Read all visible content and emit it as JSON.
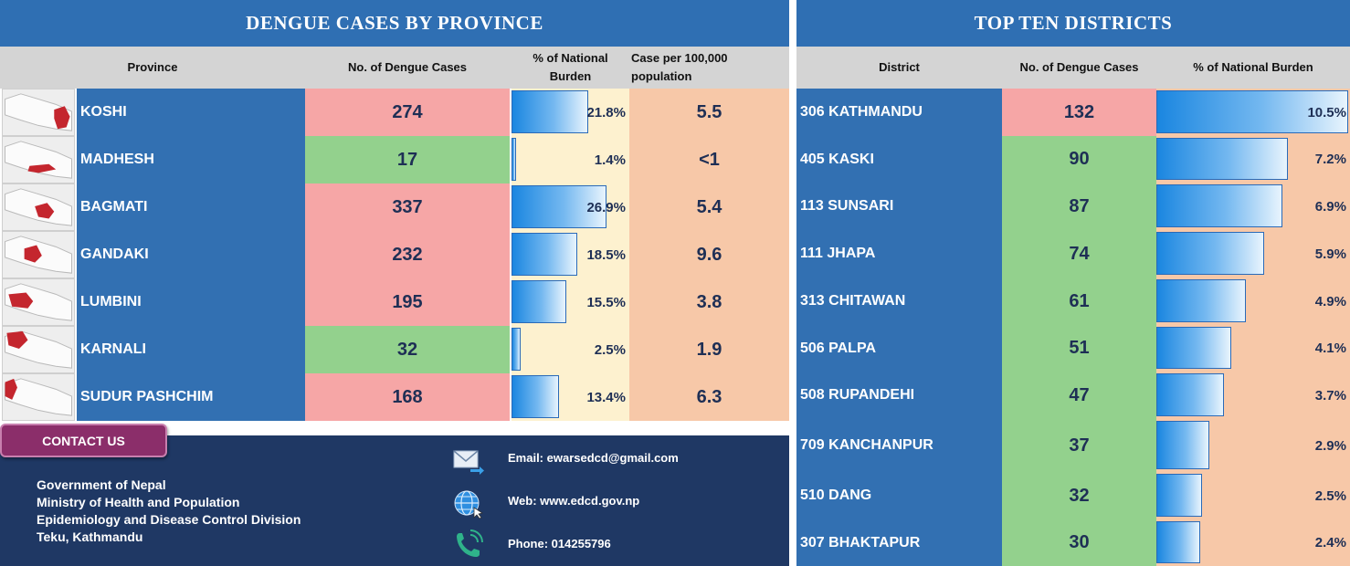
{
  "left_title": "DENGUE CASES BY PROVINCE",
  "right_title": "TOP TEN DISTRICTS",
  "province_headers": {
    "province": "Province",
    "cases": "No. of Dengue Cases",
    "burden": "% of National Burden",
    "rate": "Case per 100,000 population"
  },
  "provinces": [
    {
      "name": "KOSHI",
      "cases": "274",
      "burden": "21.8%",
      "burden_value": 21.8,
      "rate": "5.5",
      "case_color": "red"
    },
    {
      "name": "MADHESH",
      "cases": "17",
      "burden": "1.4%",
      "burden_value": 1.4,
      "rate": "<1",
      "case_color": "green"
    },
    {
      "name": "BAGMATI",
      "cases": "337",
      "burden": "26.9%",
      "burden_value": 26.9,
      "rate": "5.4",
      "case_color": "red"
    },
    {
      "name": "GANDAKI",
      "cases": "232",
      "burden": "18.5%",
      "burden_value": 18.5,
      "rate": "9.6",
      "case_color": "red"
    },
    {
      "name": "LUMBINI",
      "cases": "195",
      "burden": "15.5%",
      "burden_value": 15.5,
      "rate": "3.8",
      "case_color": "red"
    },
    {
      "name": "KARNALI",
      "cases": "32",
      "burden": "2.5%",
      "burden_value": 2.5,
      "rate": "1.9",
      "case_color": "green"
    },
    {
      "name": "SUDUR PASHCHIM",
      "cases": "168",
      "burden": "13.4%",
      "burden_value": 13.4,
      "rate": "6.3",
      "case_color": "red"
    }
  ],
  "district_headers": {
    "district": "District",
    "cases": "No. of Dengue Cases",
    "burden": "% of National Burden"
  },
  "districts": [
    {
      "name": "306 KATHMANDU",
      "cases": "132",
      "burden": "10.5%",
      "burden_value": 10.5,
      "case_color": "red"
    },
    {
      "name": "405 KASKI",
      "cases": "90",
      "burden": "7.2%",
      "burden_value": 7.2,
      "case_color": "green"
    },
    {
      "name": "113 SUNSARI",
      "cases": "87",
      "burden": "6.9%",
      "burden_value": 6.9,
      "case_color": "green"
    },
    {
      "name": "111 JHAPA",
      "cases": "74",
      "burden": "5.9%",
      "burden_value": 5.9,
      "case_color": "green"
    },
    {
      "name": "313 CHITAWAN",
      "cases": "61",
      "burden": "4.9%",
      "burden_value": 4.9,
      "case_color": "green"
    },
    {
      "name": "506 PALPA",
      "cases": "51",
      "burden": "4.1%",
      "burden_value": 4.1,
      "case_color": "green"
    },
    {
      "name": "508 RUPANDEHI",
      "cases": "47",
      "burden": "3.7%",
      "burden_value": 3.7,
      "case_color": "green"
    },
    {
      "name": "709 KANCHANPUR",
      "cases": "37",
      "burden": "2.9%",
      "burden_value": 2.9,
      "case_color": "green"
    },
    {
      "name": "510 DANG",
      "cases": "32",
      "burden": "2.5%",
      "burden_value": 2.5,
      "case_color": "green"
    },
    {
      "name": "307 BHAKTAPUR",
      "cases": "30",
      "burden": "2.4%",
      "burden_value": 2.4,
      "case_color": "green"
    }
  ],
  "contact": {
    "button": "CONTACT US",
    "org_lines": [
      "Government of Nepal",
      "Ministry of Health and Population",
      "Epidemiology and Disease Control Division",
      "Teku, Kathmandu"
    ],
    "email": "Email: ewarsedcd@gmail.com",
    "web": "Web: www.edcd.gov.np",
    "phone": "Phone: 014255796",
    "icons": [
      "email-icon",
      "globe-icon",
      "phone-icon"
    ]
  },
  "colors": {
    "banner": "#2f6fb3",
    "name_cell": "#3270b2",
    "cases_high": "#f6a6a6",
    "cases_low": "#93d18d",
    "burden_bg": "#fdf1cf",
    "rate_bg": "#f7c8a8",
    "contact_bg": "#1f3864",
    "contact_button": "#8b2e6a"
  }
}
